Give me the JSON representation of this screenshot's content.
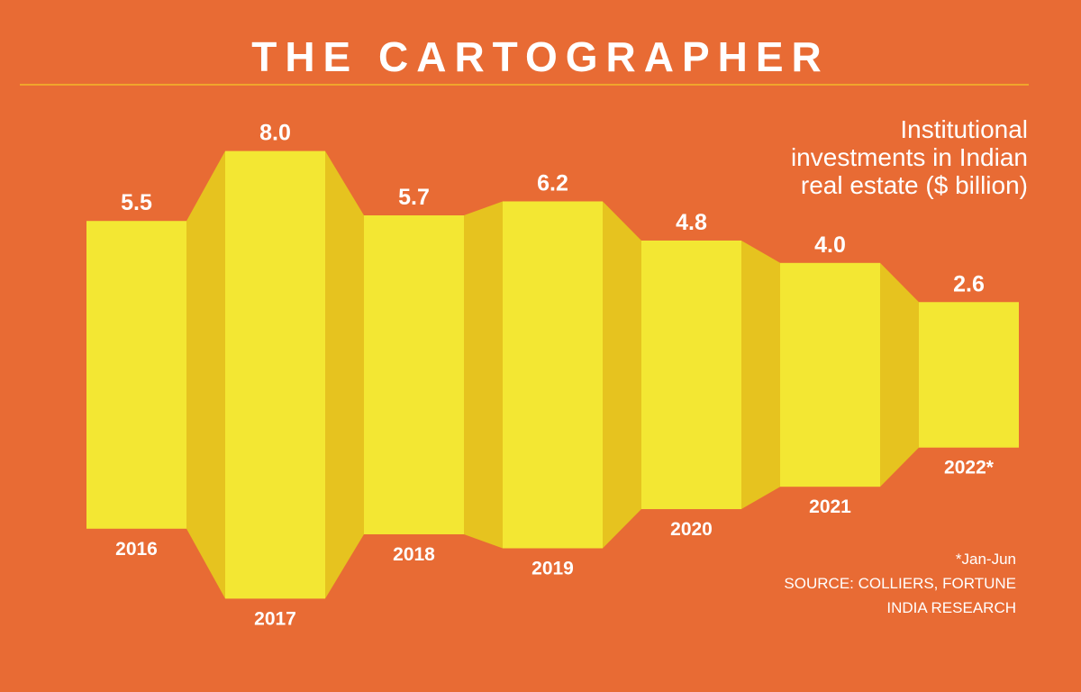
{
  "header": {
    "title": "THE CARTOGRAPHER"
  },
  "chart_data": {
    "type": "bar",
    "title": "Institutional investments in Indian real estate ($ billion)",
    "title_lines": [
      "Institutional",
      "investments in Indian",
      "real estate ($ billion)"
    ],
    "categories": [
      "2016",
      "2017",
      "2018",
      "2019",
      "2020",
      "2021",
      "2022*"
    ],
    "values": [
      5.5,
      8.0,
      5.7,
      6.2,
      4.8,
      4.0,
      2.6
    ],
    "value_labels": [
      "5.5",
      "8.0",
      "5.7",
      "6.2",
      "4.8",
      "4.0",
      "2.6"
    ],
    "xlabel": "",
    "ylabel": "",
    "ylim": [
      0,
      8.0
    ],
    "grid": false,
    "colors": {
      "background": "#e86b34",
      "bar": "#f3e733",
      "connector": "#e6c31f",
      "text": "#ffffff"
    }
  },
  "footnotes": {
    "note": "*Jan-Jun",
    "source_line1": "SOURCE: COLLIERS, FORTUNE",
    "source_line2": "INDIA RESEARCH"
  }
}
